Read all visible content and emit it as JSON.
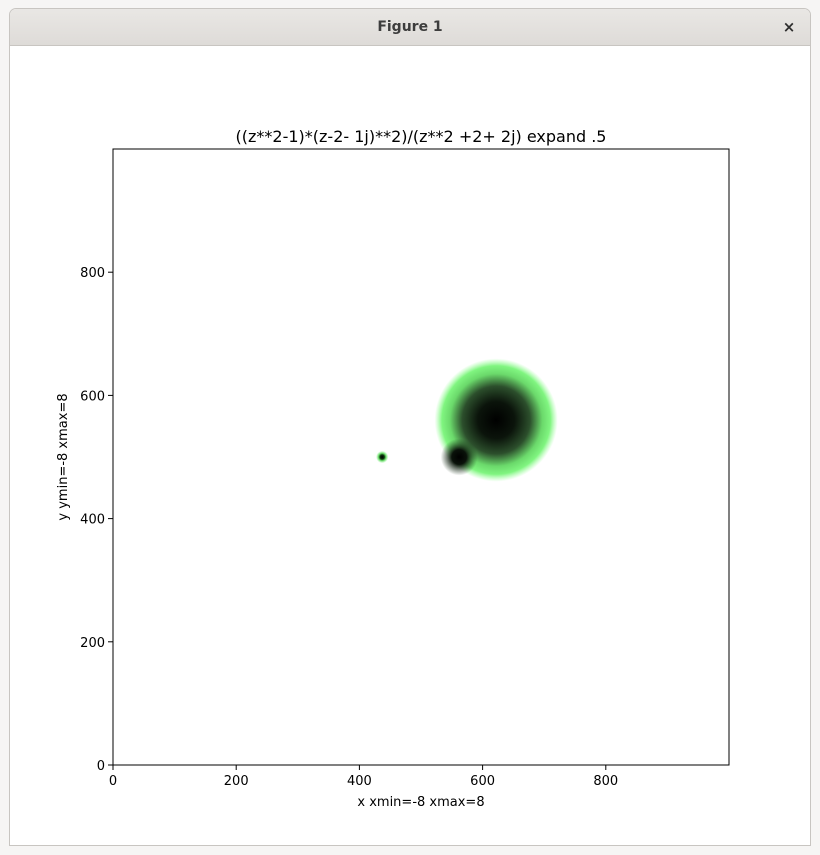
{
  "window": {
    "title": "Figure 1",
    "close_glyph": "×"
  },
  "chart_data": {
    "type": "heatmap",
    "title": "((z**2-1)*(z-2- 1j)**2)/(z**2 +2+ 2j) expand .5",
    "xlabel": "x xmin=-8 xmax=8",
    "ylabel": "y ymin=-8 xmax=8",
    "xlim": [
      0,
      1000
    ],
    "ylim": [
      0,
      1000
    ],
    "xticks": [
      0,
      200,
      400,
      600,
      800
    ],
    "yticks": [
      0,
      200,
      400,
      600,
      800
    ],
    "colors": {
      "background": "#ffffff",
      "halo": "#7ff57f",
      "core": "#000000"
    },
    "features": [
      {
        "name": "small pole",
        "x": 437,
        "y": 500,
        "radius": 10
      },
      {
        "name": "large blob",
        "x": 622,
        "y": 560,
        "radius": 100
      },
      {
        "name": "blob zero",
        "x": 562,
        "y": 500,
        "radius": 30
      }
    ]
  }
}
